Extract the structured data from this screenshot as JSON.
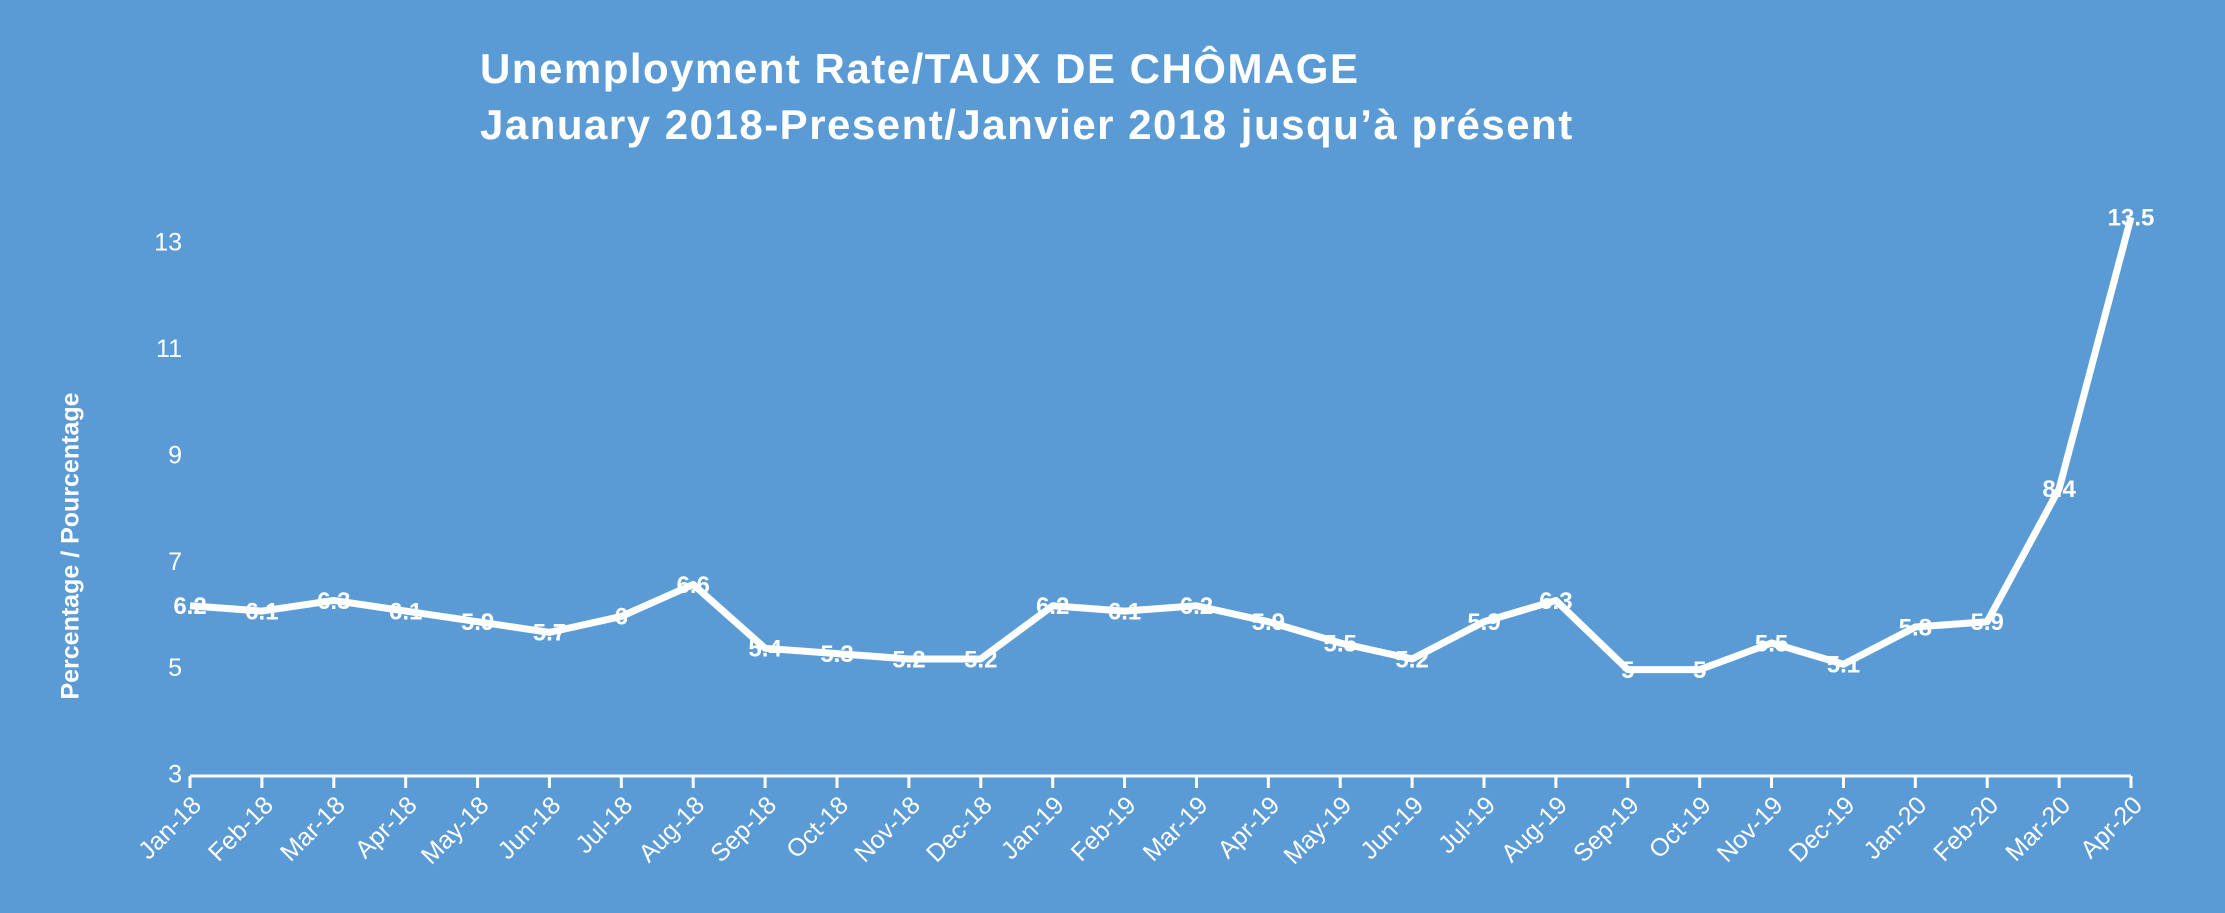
{
  "chart_data": {
    "type": "line",
    "title": "Unemployment Rate/TAUX DE CHÔMAGE",
    "subtitle": "January 2018-Present/Janvier 2018 jusqu’à présent",
    "y_label": "Percentage / Pourcentage",
    "categories": [
      "Jan-18",
      "Feb-18",
      "Mar-18",
      "Apr-18",
      "May-18",
      "Jun-18",
      "Jul-18",
      "Aug-18",
      "Sep-18",
      "Oct-18",
      "Nov-18",
      "Dec-18",
      "Jan-19",
      "Feb-19",
      "Mar-19",
      "Apr-19",
      "May-19",
      "Jun-19",
      "Jul-19",
      "Aug-19",
      "Sep-19",
      "Oct-19",
      "Nov-19",
      "Dec-19",
      "Jan-20",
      "Feb-20",
      "Mar-20",
      "Apr-20"
    ],
    "values": [
      6.2,
      6.1,
      6.3,
      6.1,
      5.9,
      5.7,
      6,
      6.6,
      5.4,
      5.3,
      5.2,
      5.2,
      6.2,
      6.1,
      6.2,
      5.9,
      5.5,
      5.2,
      5.9,
      6.3,
      5,
      5,
      5.5,
      5.1,
      5.8,
      5.9,
      8.4,
      13.5
    ],
    "color": "#ffffff",
    "ylim": [
      3,
      13
    ],
    "yticks": [
      3,
      5,
      7,
      9,
      11,
      13
    ],
    "grid": false
  }
}
